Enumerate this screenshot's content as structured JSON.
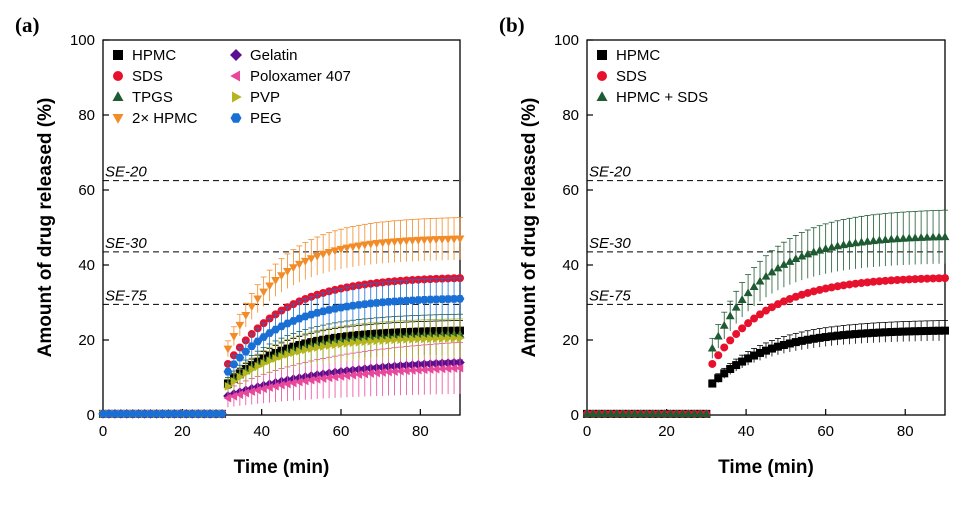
{
  "chart_data": [
    {
      "panel": "(a)",
      "type": "scatter",
      "xlabel": "Time (min)",
      "ylabel": "Amount of drug released (%)",
      "xlim": [
        0,
        90
      ],
      "ylim": [
        0,
        100
      ],
      "xticks": [
        0,
        20,
        40,
        60,
        80
      ],
      "yticks": [
        0,
        20,
        40,
        60,
        80,
        100
      ],
      "legend_placement": "top-left, two columns",
      "reference_lines": [
        {
          "label": "SE-20",
          "y": 62.5
        },
        {
          "label": "SE-30",
          "y": 43.5
        },
        {
          "label": "SE-75",
          "y": 29.5
        }
      ],
      "series": [
        {
          "name": "HPMC",
          "marker": "square",
          "color": "#000000",
          "final": 22.5,
          "k": 0.07,
          "err_frac": 0.12
        },
        {
          "name": "SDS",
          "marker": "circle",
          "color": "#e8112d",
          "final": 36.5,
          "k": 0.07,
          "err_frac": 0.02
        },
        {
          "name": "TPGS",
          "marker": "triangle-up",
          "color": "#1e5a32",
          "final": 21.5,
          "k": 0.07,
          "err_frac": 0.25
        },
        {
          "name": "2× HPMC",
          "marker": "triangle-down",
          "color": "#f28c28",
          "final": 47.0,
          "k": 0.08,
          "err_frac": 0.12
        },
        {
          "name": "Gelatin",
          "marker": "diamond",
          "color": "#5b0f8e",
          "final": 14.0,
          "k": 0.035,
          "err_frac": 0.05
        },
        {
          "name": "Poloxamer 407",
          "marker": "triangle-left",
          "color": "#e8489c",
          "final": 12.5,
          "k": 0.035,
          "err_frac": 0.55
        },
        {
          "name": "PVP",
          "marker": "triangle-right",
          "color": "#b5b51e",
          "final": 20.5,
          "k": 0.07,
          "err_frac": 0.25
        },
        {
          "name": "PEG",
          "marker": "hexagon",
          "color": "#1a6fd4",
          "final": 31.0,
          "k": 0.07,
          "err_frac": 0.18
        }
      ]
    },
    {
      "panel": "(b)",
      "type": "scatter",
      "xlabel": "Time (min)",
      "ylabel": "Amount of drug released (%)",
      "xlim": [
        0,
        90
      ],
      "ylim": [
        0,
        100
      ],
      "xticks": [
        0,
        20,
        40,
        60,
        80
      ],
      "yticks": [
        0,
        20,
        40,
        60,
        80,
        100
      ],
      "legend_placement": "top-left",
      "reference_lines": [
        {
          "label": "SE-20",
          "y": 62.5
        },
        {
          "label": "SE-30",
          "y": 43.5
        },
        {
          "label": "SE-75",
          "y": 29.5
        }
      ],
      "series": [
        {
          "name": "HPMC",
          "marker": "square",
          "color": "#000000",
          "final": 22.5,
          "k": 0.07,
          "err_frac": 0.12
        },
        {
          "name": "SDS",
          "marker": "circle",
          "color": "#e8112d",
          "final": 36.5,
          "k": 0.07,
          "err_frac": 0.02
        },
        {
          "name": "HPMC + SDS",
          "marker": "triangle-up",
          "color": "#1e5a32",
          "final": 47.5,
          "k": 0.075,
          "err_frac": 0.15
        }
      ]
    }
  ]
}
